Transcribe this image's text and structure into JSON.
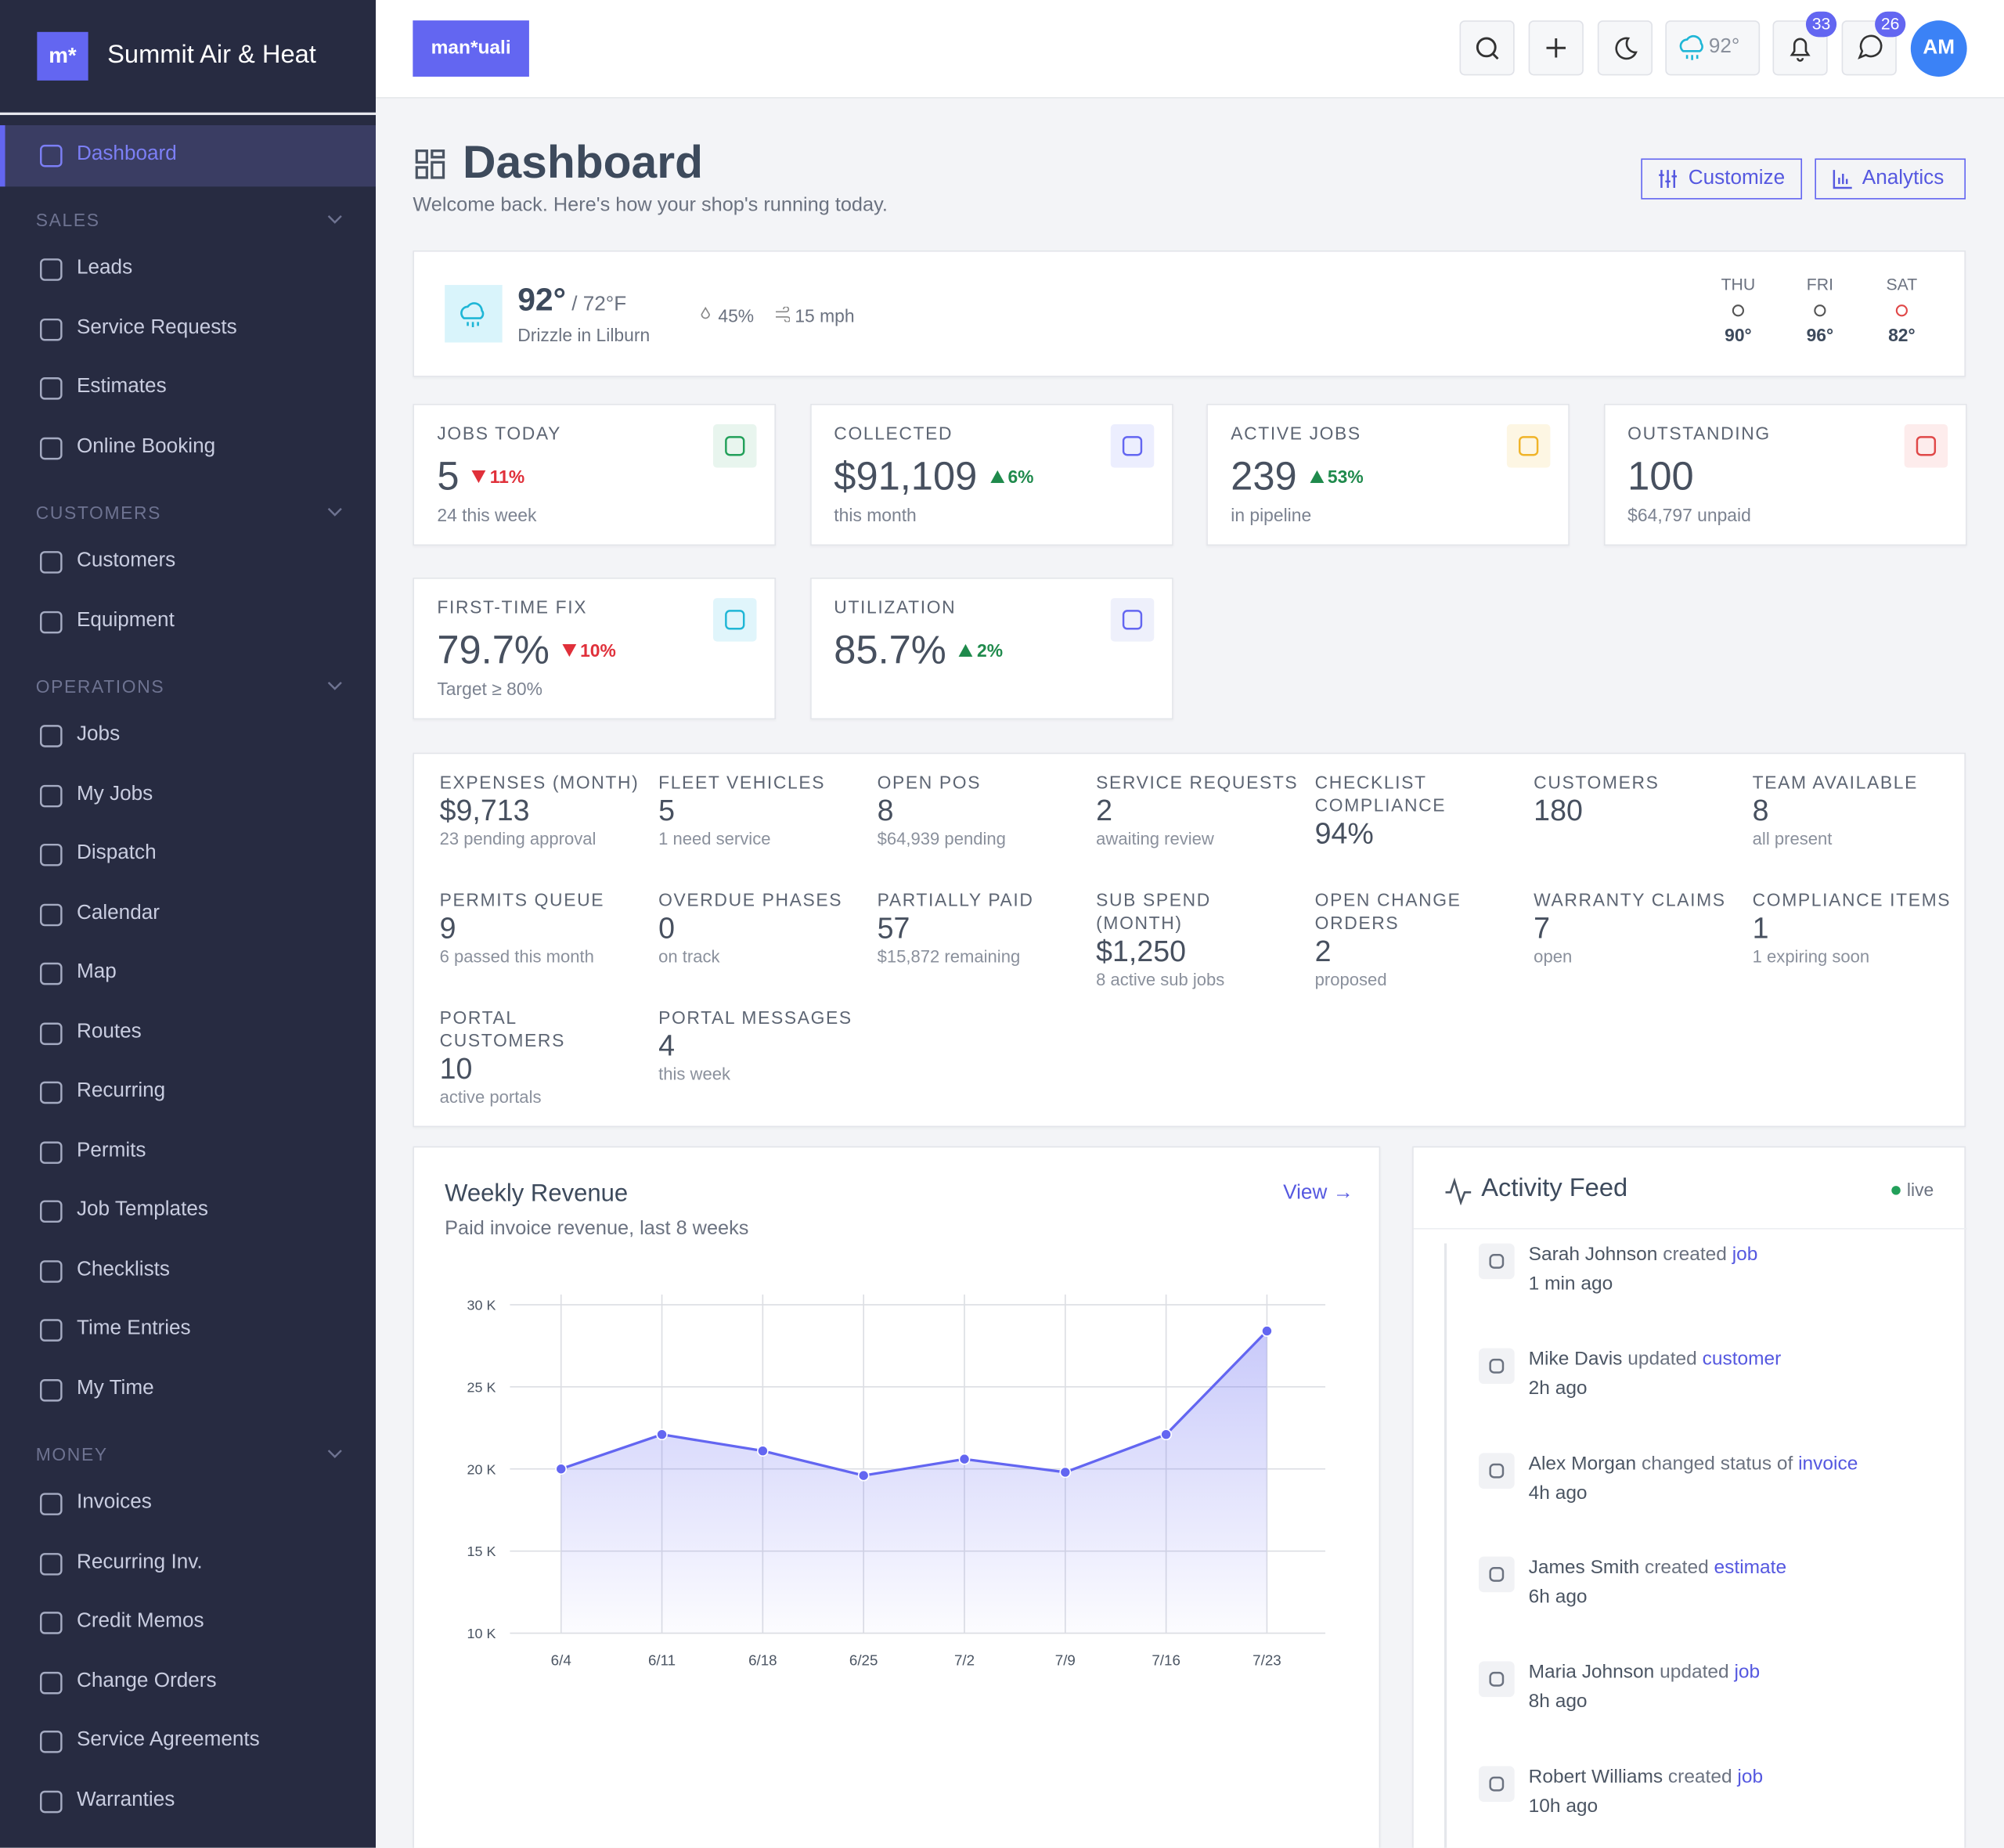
{
  "brand": {
    "logo": "m*",
    "name": "Summit Air & Heat"
  },
  "header": {
    "logo": "man*uali",
    "weather_temp": "92°",
    "notifications": 33,
    "messages": 26,
    "avatar": "AM"
  },
  "sidebar": {
    "top": "Dashboard",
    "sections": [
      {
        "title": "SALES",
        "items": [
          "Leads",
          "Service Requests",
          "Estimates",
          "Online Booking"
        ]
      },
      {
        "title": "CUSTOMERS",
        "items": [
          "Customers",
          "Equipment"
        ]
      },
      {
        "title": "OPERATIONS",
        "items": [
          "Jobs",
          "My Jobs",
          "Dispatch",
          "Calendar",
          "Map",
          "Routes",
          "Recurring",
          "Permits",
          "Job Templates",
          "Checklists",
          "Time Entries",
          "My Time"
        ]
      },
      {
        "title": "MONEY",
        "items": [
          "Invoices",
          "Recurring Inv.",
          "Credit Memos",
          "Change Orders",
          "Service Agreements",
          "Warranties"
        ]
      }
    ]
  },
  "page": {
    "title": "Dashboard",
    "subtitle": "Welcome back. Here's how your shop's running today.",
    "buttons": [
      "Customize",
      "Analytics"
    ]
  },
  "weather": {
    "temp": "92°",
    "low": "/ 72°F",
    "description": "Drizzle in Lilburn",
    "humidity": "45%",
    "wind": "15 mph",
    "forecast": [
      {
        "day": "THU",
        "temp": "90°"
      },
      {
        "day": "FRI",
        "temp": "96°"
      },
      {
        "day": "SAT",
        "temp": "82°"
      }
    ]
  },
  "kpis": [
    {
      "label": "JOBS TODAY",
      "value": "5",
      "delta": "11%",
      "trend": "down",
      "sub": "24 this week"
    },
    {
      "label": "COLLECTED",
      "value": "$91,109",
      "delta": "6%",
      "trend": "up",
      "sub": "this month"
    },
    {
      "label": "ACTIVE JOBS",
      "value": "239",
      "delta": "53%",
      "trend": "up",
      "sub": "in pipeline"
    },
    {
      "label": "OUTSTANDING",
      "value": "100",
      "sub": "$64,797 unpaid"
    },
    {
      "label": "FIRST-TIME FIX",
      "value": "79.7%",
      "delta": "10%",
      "trend": "down",
      "sub": "Target ≥ 80%"
    },
    {
      "label": "UTILIZATION",
      "value": "85.7%",
      "delta": "2%",
      "trend": "up"
    }
  ],
  "stats": [
    {
      "label": "EXPENSES (MONTH)",
      "value": "$9,713",
      "sub": "23 pending approval"
    },
    {
      "label": "FLEET VEHICLES",
      "value": "5",
      "sub": "1 need service"
    },
    {
      "label": "OPEN POS",
      "value": "8",
      "sub": "$64,939 pending"
    },
    {
      "label": "SERVICE REQUESTS",
      "value": "2",
      "sub": "awaiting review"
    },
    {
      "label": "CHECKLIST COMPLIANCE",
      "value": "94%"
    },
    {
      "label": "CUSTOMERS",
      "value": "180"
    },
    {
      "label": "TEAM AVAILABLE",
      "value": "8",
      "sub": "all present"
    },
    {
      "label": "PERMITS QUEUE",
      "value": "9",
      "sub": "6 passed this month"
    },
    {
      "label": "OVERDUE PHASES",
      "value": "0",
      "sub": "on track"
    },
    {
      "label": "PARTIALLY PAID",
      "value": "57",
      "sub": "$15,872 remaining"
    },
    {
      "label": "SUB SPEND (MONTH)",
      "value": "$1,250",
      "sub": "8 active sub jobs"
    },
    {
      "label": "OPEN CHANGE ORDERS",
      "value": "2",
      "sub": "proposed"
    },
    {
      "label": "WARRANTY CLAIMS",
      "value": "7",
      "sub": "open"
    },
    {
      "label": "COMPLIANCE ITEMS",
      "value": "1",
      "sub": "1 expiring soon"
    },
    {
      "label": "PORTAL CUSTOMERS",
      "value": "10",
      "sub": "active portals"
    },
    {
      "label": "PORTAL MESSAGES",
      "value": "4",
      "sub": "this week"
    }
  ],
  "chart_data": {
    "type": "line",
    "title": "Weekly Revenue",
    "subtitle": "Paid invoice revenue, last 8 weeks",
    "link": "View →",
    "categories": [
      "6/4",
      "6/11",
      "6/18",
      "6/25",
      "7/2",
      "7/9",
      "7/16",
      "7/23"
    ],
    "values": [
      20000,
      22100,
      21100,
      19600,
      20600,
      19800,
      22100,
      28400
    ],
    "color": "#6366f1",
    "ylim": [
      10000,
      30000
    ],
    "yticks": [
      {
        "value": 10000,
        "label": "10 K"
      },
      {
        "value": 15000,
        "label": "15 K"
      },
      {
        "value": 20000,
        "label": "20 K"
      },
      {
        "value": 25000,
        "label": "25 K"
      },
      {
        "value": 30000,
        "label": "30 K"
      }
    ],
    "grid": true
  },
  "activity": {
    "title": "Activity Feed",
    "status": "live",
    "items": [
      {
        "actor": "Sarah Johnson",
        "action": "created",
        "object": "job",
        "time": "1 min ago"
      },
      {
        "actor": "Mike Davis",
        "action": "updated",
        "object": "customer",
        "time": "2h ago"
      },
      {
        "actor": "Alex Morgan",
        "action": "changed status of",
        "object": "invoice",
        "time": "4h ago"
      },
      {
        "actor": "James Smith",
        "action": "created",
        "object": "estimate",
        "time": "6h ago"
      },
      {
        "actor": "Maria Johnson",
        "action": "updated",
        "object": "job",
        "time": "8h ago"
      },
      {
        "actor": "Robert Williams",
        "action": "created",
        "object": "job",
        "time": "10h ago"
      }
    ]
  }
}
